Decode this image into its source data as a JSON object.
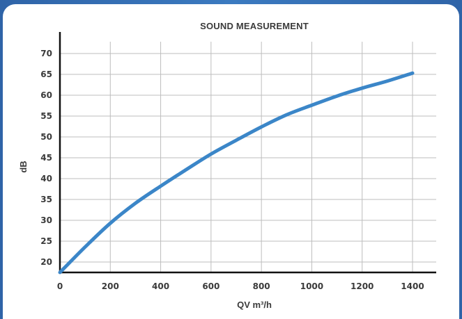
{
  "chart_data": {
    "type": "line",
    "title": "SOUND MEASUREMENT",
    "xlabel": "QV m³/h",
    "ylabel": "dB",
    "xlim": [
      0,
      1500
    ],
    "ylim": [
      17,
      72
    ],
    "x_ticks": [
      0,
      200,
      400,
      600,
      800,
      1000,
      1200,
      1400
    ],
    "y_ticks": [
      20,
      25,
      30,
      35,
      40,
      45,
      50,
      55,
      60,
      65,
      70
    ],
    "grid": true,
    "line_color": "#3b86c8",
    "series": [
      {
        "x": [
          0,
          100,
          200,
          300,
          400,
          500,
          600,
          700,
          800,
          900,
          1000,
          1100,
          1200,
          1300,
          1400
        ],
        "y": [
          17.5,
          23.6,
          29.3,
          34.1,
          38.2,
          42.1,
          45.9,
          49.2,
          52.4,
          55.3,
          57.6,
          59.8,
          61.7,
          63.4,
          65.3
        ]
      }
    ]
  }
}
